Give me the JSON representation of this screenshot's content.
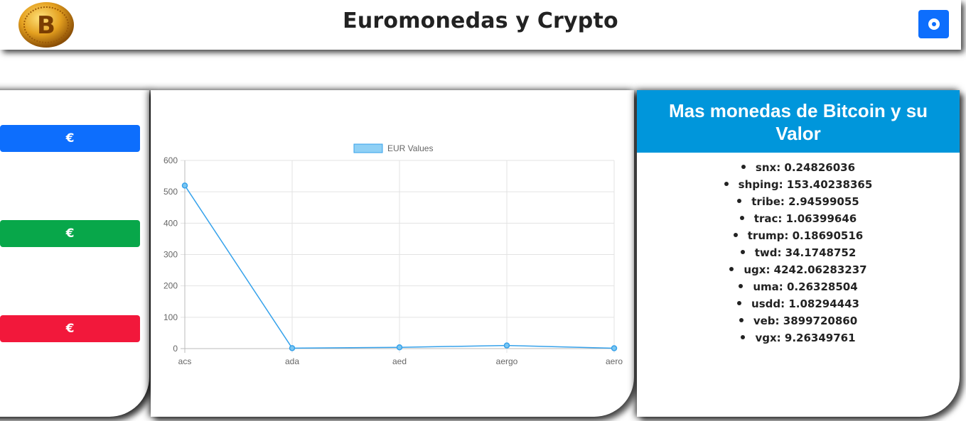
{
  "header": {
    "title": "Euromonedas y Crypto",
    "logo_icon": "bitcoin-logo-icon",
    "settings_icon": "settings-toggle-icon",
    "accent": "#0d6efd"
  },
  "left_panel": {
    "buttons": [
      {
        "label": "€",
        "color": "#0d6efd"
      },
      {
        "label": "€",
        "color": "#08a74a"
      },
      {
        "label": "€",
        "color": "#f2183b"
      }
    ]
  },
  "right_panel": {
    "title": "Mas monedas de Bitcoin y su Valor",
    "header_color": "#0096db",
    "coins": [
      {
        "text": "snx: 0.24826036"
      },
      {
        "text": "shping: 153.40238365"
      },
      {
        "text": "tribe: 2.94599055"
      },
      {
        "text": "trac: 1.06399646"
      },
      {
        "text": "trump: 0.18690516"
      },
      {
        "text": "twd: 34.1748752"
      },
      {
        "text": "ugx: 4242.06283237"
      },
      {
        "text": "uma: 0.26328504"
      },
      {
        "text": "usdd: 1.08294443"
      },
      {
        "text": "veb: 3899720860"
      },
      {
        "text": "vgx: 9.26349761"
      }
    ]
  },
  "chart_data": {
    "type": "line",
    "categories": [
      "acs",
      "ada",
      "aed",
      "aergo",
      "aero"
    ],
    "series": [
      {
        "name": "EUR Values",
        "values": [
          520,
          1.5,
          4,
          10,
          1.2
        ],
        "color": "#36a2eb"
      }
    ],
    "title": "",
    "xlabel": "",
    "ylabel": "",
    "ylim": [
      0,
      600
    ],
    "yticks": [
      0,
      100,
      200,
      300,
      400,
      500,
      600
    ],
    "grid": true,
    "legend": "top"
  }
}
